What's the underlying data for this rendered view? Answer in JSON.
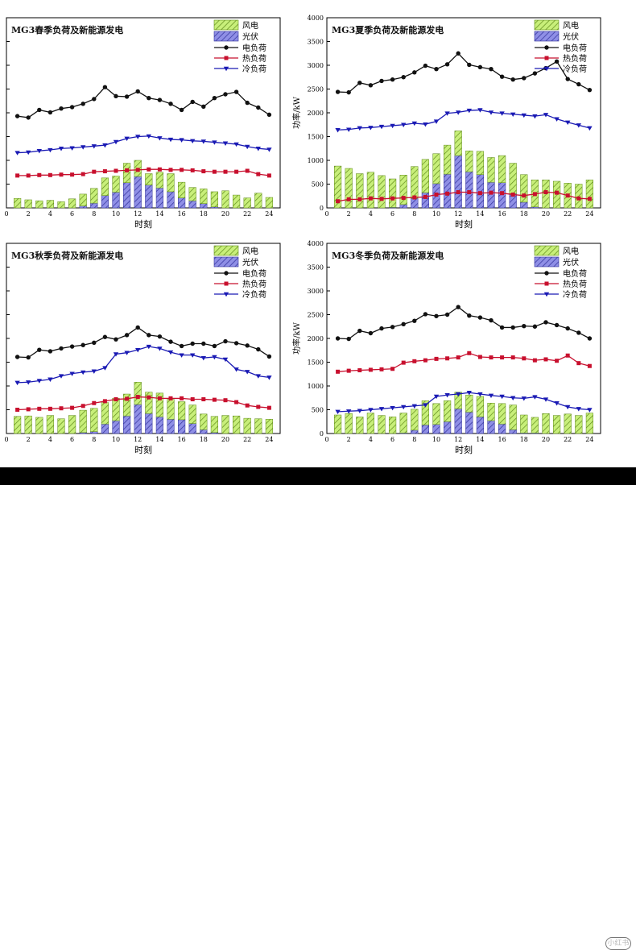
{
  "legend_labels": {
    "wind": "风电",
    "pv": "光伏",
    "elec": "电负荷",
    "heat": "热负荷",
    "cold": "冷负荷"
  },
  "colors": {
    "wind_fill": "#c8ef7a",
    "wind_hatch": "#5f8a1a",
    "pv_fill": "#8f8fe6",
    "pv_hatch": "#30309a",
    "elec": "#111111",
    "heat": "#c8102e",
    "cold": "#1a1ab4",
    "axis": "#000000"
  },
  "watermark": "小红书",
  "chart_data": [
    {
      "type": "bar+line",
      "season": "spring",
      "title": "MG3春季负荷及新能源发电",
      "xlabel": "时刻",
      "ylabel": "",
      "ylim": [
        0,
        4000
      ],
      "show_y_ticks": false,
      "xticks": [
        0,
        2,
        4,
        6,
        8,
        10,
        12,
        14,
        16,
        18,
        20,
        22,
        24
      ],
      "yticks": [
        0,
        500,
        1000,
        1500,
        2000,
        2500,
        3000,
        3500,
        4000
      ],
      "x": [
        1,
        2,
        3,
        4,
        5,
        6,
        7,
        8,
        9,
        10,
        11,
        12,
        13,
        14,
        15,
        16,
        17,
        18,
        19,
        20,
        21,
        22,
        23,
        24
      ],
      "series": [
        {
          "name": "风电",
          "kind": "bar_top",
          "values": [
            200,
            170,
            150,
            160,
            130,
            190,
            250,
            310,
            370,
            340,
            410,
            340,
            240,
            330,
            380,
            330,
            280,
            310,
            320,
            360,
            270,
            210,
            310,
            220
          ]
        },
        {
          "name": "光伏",
          "kind": "bar_bottom",
          "values": [
            0,
            0,
            0,
            0,
            0,
            0,
            40,
            100,
            260,
            330,
            530,
            660,
            480,
            420,
            340,
            210,
            150,
            90,
            20,
            0,
            0,
            0,
            0,
            0
          ]
        },
        {
          "name": "电负荷",
          "kind": "line",
          "marker": "circle",
          "values": [
            1930,
            1900,
            2060,
            2010,
            2090,
            2120,
            2190,
            2290,
            2540,
            2350,
            2340,
            2450,
            2310,
            2270,
            2190,
            2060,
            2230,
            2130,
            2310,
            2390,
            2440,
            2210,
            2110,
            1960
          ]
        },
        {
          "name": "热负荷",
          "kind": "line",
          "marker": "square",
          "values": [
            680,
            680,
            690,
            690,
            700,
            700,
            710,
            760,
            770,
            780,
            790,
            800,
            810,
            810,
            800,
            800,
            790,
            770,
            760,
            760,
            760,
            780,
            710,
            680
          ]
        },
        {
          "name": "冷负荷",
          "kind": "line",
          "marker": "triangle",
          "values": [
            1160,
            1170,
            1200,
            1220,
            1250,
            1260,
            1280,
            1300,
            1320,
            1390,
            1460,
            1500,
            1510,
            1470,
            1440,
            1430,
            1410,
            1400,
            1380,
            1360,
            1340,
            1290,
            1250,
            1230
          ]
        }
      ]
    },
    {
      "type": "bar+line",
      "season": "summer",
      "title": "MG3夏季负荷及新能源发电",
      "xlabel": "时刻",
      "ylabel": "功率/kW",
      "ylim": [
        0,
        4000
      ],
      "show_y_ticks": true,
      "xticks": [
        0,
        2,
        4,
        6,
        8,
        10,
        12,
        14,
        16,
        18,
        20,
        22,
        24
      ],
      "yticks": [
        0,
        500,
        1000,
        1500,
        2000,
        2500,
        3000,
        3500,
        4000
      ],
      "x": [
        1,
        2,
        3,
        4,
        5,
        6,
        7,
        8,
        9,
        10,
        11,
        12,
        13,
        14,
        15,
        16,
        17,
        18,
        19,
        20,
        21,
        22,
        23,
        24
      ],
      "series": [
        {
          "name": "风电",
          "kind": "bar_top",
          "values": [
            880,
            830,
            720,
            750,
            680,
            600,
            620,
            670,
            700,
            630,
            610,
            520,
            440,
            490,
            520,
            570,
            640,
            580,
            570,
            590,
            560,
            520,
            500,
            590
          ]
        },
        {
          "name": "光伏",
          "kind": "bar_bottom",
          "values": [
            0,
            0,
            0,
            0,
            0,
            10,
            70,
            200,
            320,
            510,
            710,
            1100,
            760,
            700,
            540,
            530,
            300,
            120,
            20,
            0,
            0,
            0,
            0,
            0
          ]
        },
        {
          "name": "电负荷",
          "kind": "line",
          "marker": "circle",
          "values": [
            2440,
            2430,
            2630,
            2580,
            2670,
            2700,
            2750,
            2850,
            2990,
            2920,
            3020,
            3250,
            3010,
            2960,
            2920,
            2760,
            2700,
            2730,
            2830,
            2940,
            3080,
            2710,
            2600,
            2480
          ]
        },
        {
          "name": "热负荷",
          "kind": "line",
          "marker": "square",
          "values": [
            140,
            180,
            180,
            200,
            190,
            200,
            210,
            220,
            230,
            280,
            300,
            330,
            330,
            310,
            320,
            310,
            280,
            260,
            290,
            330,
            320,
            260,
            200,
            190
          ]
        },
        {
          "name": "冷负荷",
          "kind": "line",
          "marker": "triangle",
          "values": [
            1640,
            1650,
            1680,
            1690,
            1710,
            1730,
            1750,
            1780,
            1760,
            1820,
            1990,
            2010,
            2050,
            2060,
            2010,
            1990,
            1970,
            1950,
            1930,
            1960,
            1870,
            1800,
            1740,
            1680
          ]
        }
      ]
    },
    {
      "type": "bar+line",
      "season": "autumn",
      "title": "MG3秋季负荷及新能源发电",
      "xlabel": "时刻",
      "ylabel": "",
      "ylim": [
        0,
        4000
      ],
      "show_y_ticks": false,
      "xticks": [
        0,
        2,
        4,
        6,
        8,
        10,
        12,
        14,
        16,
        18,
        20,
        22,
        24
      ],
      "yticks": [
        0,
        500,
        1000,
        1500,
        2000,
        2500,
        3000,
        3500,
        4000
      ],
      "x": [
        1,
        2,
        3,
        4,
        5,
        6,
        7,
        8,
        9,
        10,
        11,
        12,
        13,
        14,
        15,
        16,
        17,
        18,
        19,
        20,
        21,
        22,
        23,
        24
      ],
      "series": [
        {
          "name": "风电",
          "kind": "bar_top",
          "values": [
            360,
            370,
            340,
            380,
            310,
            380,
            470,
            490,
            450,
            470,
            460,
            470,
            450,
            500,
            420,
            380,
            390,
            330,
            340,
            380,
            370,
            320,
            310,
            300
          ]
        },
        {
          "name": "光伏",
          "kind": "bar_bottom",
          "values": [
            0,
            0,
            0,
            0,
            0,
            0,
            20,
            40,
            200,
            270,
            370,
            610,
            420,
            350,
            300,
            290,
            210,
            80,
            20,
            0,
            0,
            0,
            0,
            0
          ]
        },
        {
          "name": "电负荷",
          "kind": "line",
          "marker": "circle",
          "values": [
            1610,
            1600,
            1760,
            1730,
            1790,
            1830,
            1860,
            1910,
            2030,
            1980,
            2070,
            2230,
            2070,
            2040,
            1930,
            1840,
            1890,
            1890,
            1840,
            1940,
            1900,
            1850,
            1770,
            1620
          ]
        },
        {
          "name": "热负荷",
          "kind": "line",
          "marker": "square",
          "values": [
            500,
            510,
            520,
            520,
            530,
            540,
            580,
            640,
            680,
            720,
            730,
            770,
            760,
            740,
            740,
            740,
            720,
            720,
            710,
            700,
            660,
            590,
            560,
            540
          ]
        },
        {
          "name": "冷负荷",
          "kind": "line",
          "marker": "triangle",
          "values": [
            1070,
            1080,
            1110,
            1140,
            1210,
            1260,
            1290,
            1310,
            1380,
            1670,
            1700,
            1760,
            1830,
            1790,
            1710,
            1650,
            1650,
            1590,
            1610,
            1560,
            1350,
            1300,
            1210,
            1180
          ]
        }
      ]
    },
    {
      "type": "bar+line",
      "season": "winter",
      "title": "MG3冬季负荷及新能源发电",
      "xlabel": "时刻",
      "ylabel": "功率/kW",
      "ylim": [
        0,
        4000
      ],
      "show_y_ticks": true,
      "xticks": [
        0,
        2,
        4,
        6,
        8,
        10,
        12,
        14,
        16,
        18,
        20,
        22,
        24
      ],
      "yticks": [
        0,
        500,
        1000,
        1500,
        2000,
        2500,
        3000,
        3500,
        4000
      ],
      "x": [
        1,
        2,
        3,
        4,
        5,
        6,
        7,
        8,
        9,
        10,
        11,
        12,
        13,
        14,
        15,
        16,
        17,
        18,
        19,
        20,
        21,
        22,
        23,
        24
      ],
      "series": [
        {
          "name": "风电",
          "kind": "bar_top",
          "values": [
            390,
            420,
            350,
            430,
            380,
            350,
            420,
            440,
            510,
            440,
            440,
            350,
            360,
            430,
            370,
            430,
            520,
            380,
            330,
            420,
            380,
            410,
            380,
            430
          ]
        },
        {
          "name": "光伏",
          "kind": "bar_bottom",
          "values": [
            0,
            0,
            0,
            0,
            0,
            0,
            10,
            70,
            180,
            190,
            250,
            520,
            450,
            350,
            270,
            200,
            80,
            10,
            10,
            0,
            0,
            0,
            0,
            0
          ]
        },
        {
          "name": "电负荷",
          "kind": "line",
          "marker": "circle",
          "values": [
            2000,
            1990,
            2160,
            2110,
            2210,
            2240,
            2300,
            2370,
            2510,
            2470,
            2500,
            2660,
            2480,
            2440,
            2380,
            2230,
            2230,
            2260,
            2250,
            2340,
            2280,
            2210,
            2120,
            2000
          ]
        },
        {
          "name": "热负荷",
          "kind": "line",
          "marker": "square",
          "values": [
            1300,
            1320,
            1330,
            1340,
            1350,
            1360,
            1490,
            1520,
            1540,
            1570,
            1580,
            1600,
            1690,
            1610,
            1600,
            1600,
            1600,
            1580,
            1540,
            1560,
            1530,
            1640,
            1480,
            1420
          ]
        },
        {
          "name": "冷负荷",
          "kind": "line",
          "marker": "triangle",
          "values": [
            460,
            470,
            480,
            500,
            520,
            540,
            560,
            580,
            600,
            780,
            810,
            830,
            860,
            830,
            800,
            780,
            750,
            740,
            770,
            720,
            640,
            560,
            520,
            500
          ]
        }
      ]
    }
  ]
}
